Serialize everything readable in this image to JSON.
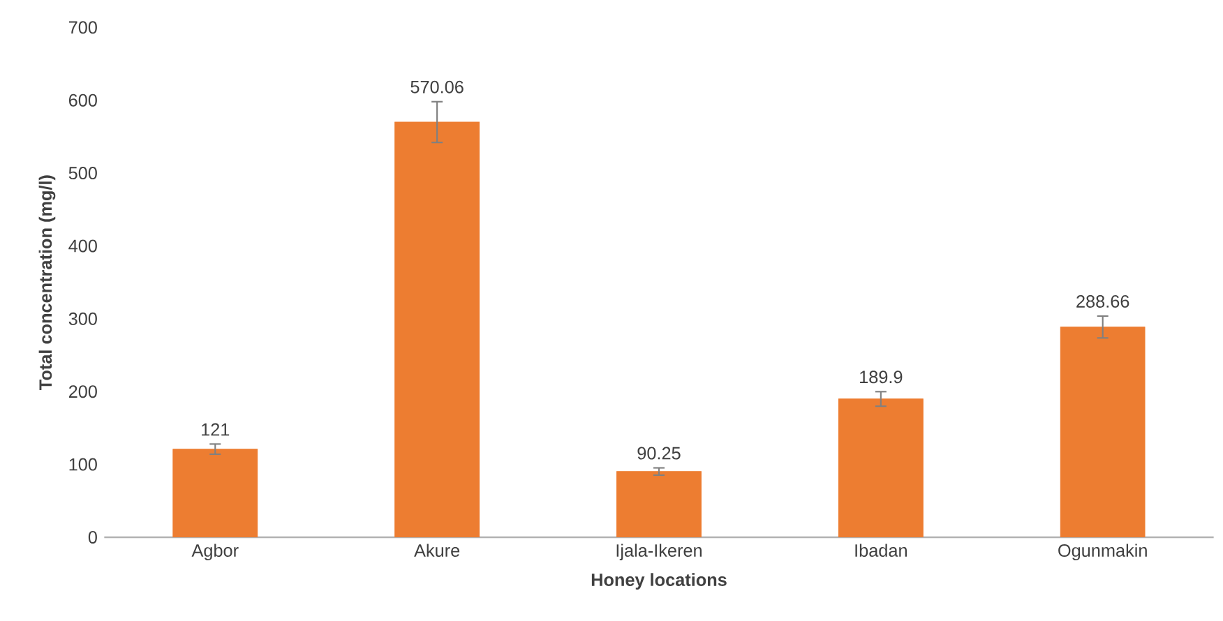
{
  "chart_data": {
    "type": "bar",
    "xlabel": "Honey locations",
    "ylabel": "Total concentration (mg/l)",
    "categories": [
      "Agbor",
      "Akure",
      "Ijala-Ikeren",
      "Ibadan",
      "Ogunmakin"
    ],
    "values": [
      121,
      570.06,
      90.25,
      189.9,
      288.66
    ],
    "errors": [
      7,
      28,
      5,
      10,
      15
    ],
    "color": "#ed7d31",
    "ylim": [
      0,
      700
    ],
    "yticks": [
      0,
      100,
      200,
      300,
      400,
      500,
      600,
      700
    ],
    "data_labels": true,
    "grid": false
  }
}
